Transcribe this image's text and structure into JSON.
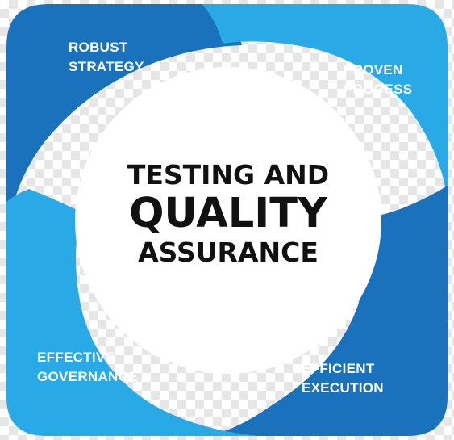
{
  "title": {
    "line1": "TESTING AND",
    "line2": "QUALITY",
    "line3": "ASSURANCE"
  },
  "segments": [
    {
      "id": "robust-strategy",
      "lines": [
        "ROBUST",
        "STRATEGY"
      ],
      "color": "#1a72bd"
    },
    {
      "id": "proven-process",
      "lines": [
        "PROVEN",
        "PROCESS"
      ],
      "color": "#29a9e6"
    },
    {
      "id": "efficient-execution",
      "lines": [
        "EFFICIENT",
        "EXECUTION"
      ],
      "color": "#1a72bd"
    },
    {
      "id": "effective-governance",
      "lines": [
        "EFFECTIVE",
        "GOVERNANCE"
      ],
      "color": "#29a9e6"
    }
  ]
}
